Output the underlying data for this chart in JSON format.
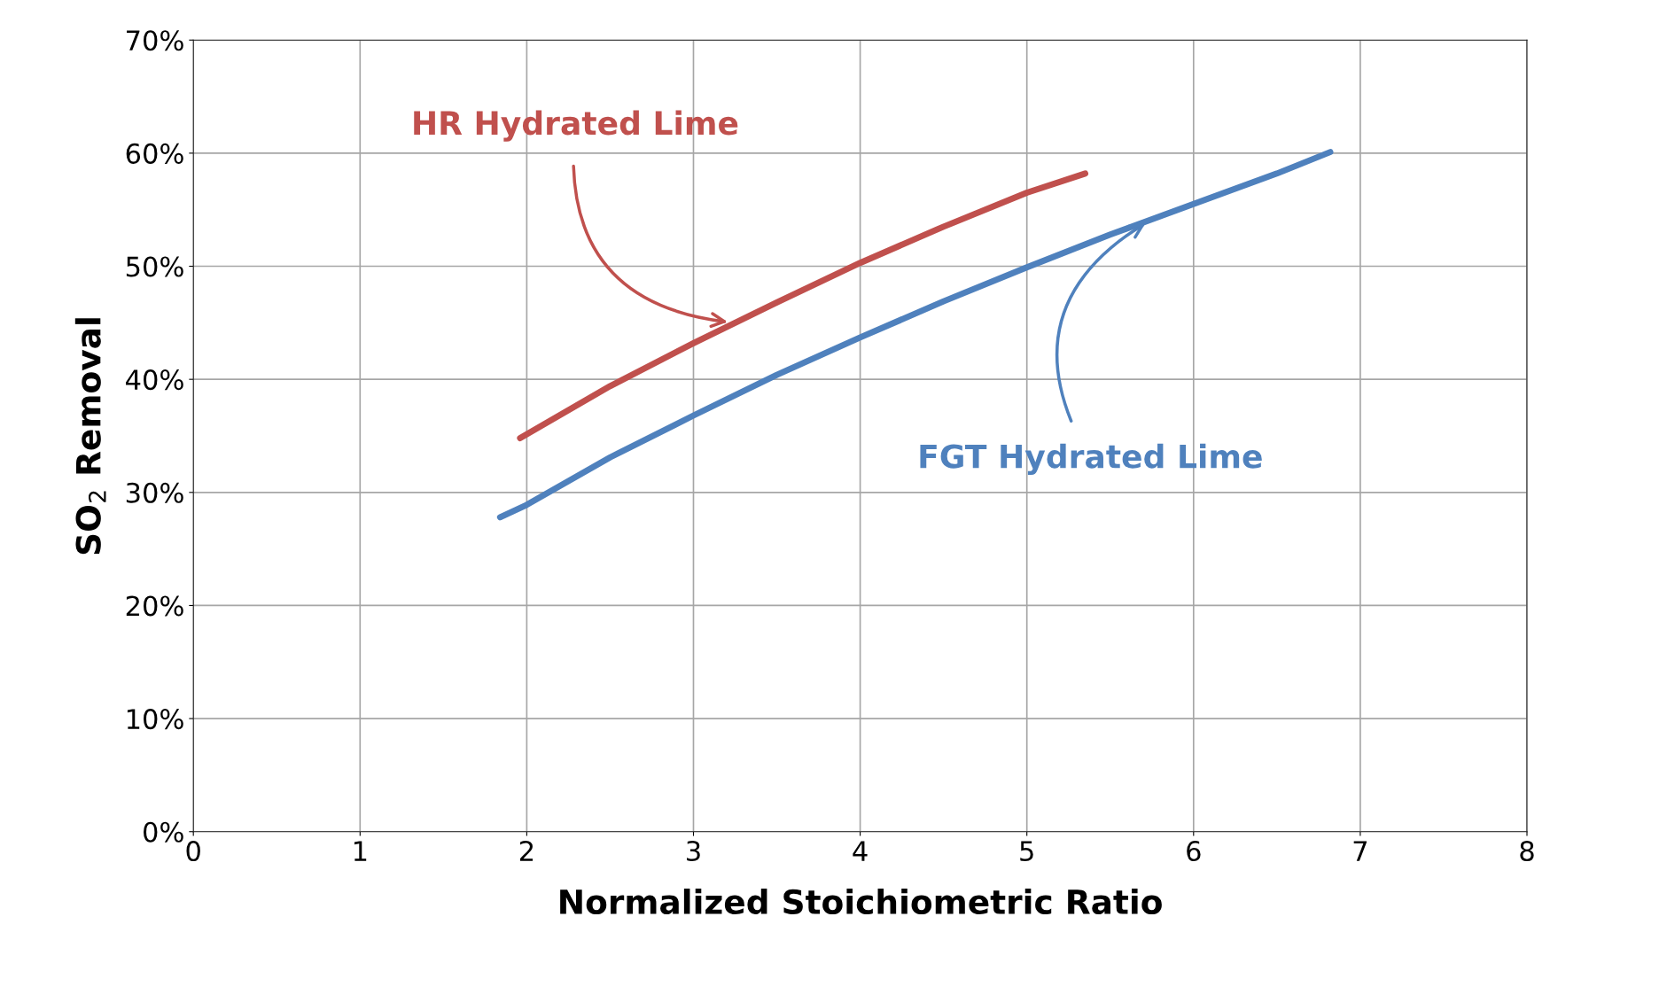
{
  "chart_data": {
    "type": "line",
    "xlabel": "Normalized Stoichiometric Ratio",
    "ylabel": "SO$_{2}$ Removal",
    "series": [
      {
        "name": "HR Hydrated Lime",
        "color": "#c0504d",
        "x": [
          1.96,
          2.5,
          3,
          3.5,
          4,
          4.5,
          5,
          5.35
        ],
        "values": [
          34.8,
          39.4,
          43.2,
          46.8,
          50.3,
          53.5,
          56.5,
          58.2
        ]
      },
      {
        "name": "FGT Hydrated Lime",
        "color": "#4f81bd",
        "x": [
          1.84,
          2,
          2.5,
          3,
          3.5,
          4,
          4.5,
          5,
          5.5,
          6,
          6.5,
          6.82
        ],
        "values": [
          27.8,
          28.9,
          33.1,
          36.8,
          40.4,
          43.7,
          46.9,
          49.9,
          52.8,
          55.5,
          58.2,
          60.1
        ]
      }
    ],
    "xlim": [
      0,
      8
    ],
    "xticks": [
      0,
      1,
      2,
      3,
      4,
      5,
      6,
      7,
      8
    ],
    "ylim": [
      0,
      70
    ],
    "yticks": [
      {
        "value": 0,
        "label": "0%"
      },
      {
        "value": 10,
        "label": "10%"
      },
      {
        "value": 20,
        "label": "20%"
      },
      {
        "value": 30,
        "label": "30%"
      },
      {
        "value": 40,
        "label": "40%"
      },
      {
        "value": 50,
        "label": "50%"
      },
      {
        "value": 60,
        "label": "60%"
      },
      {
        "value": 70,
        "label": "70%"
      }
    ],
    "grid": true,
    "legend": false,
    "marker": "none",
    "line_style": "solid"
  }
}
